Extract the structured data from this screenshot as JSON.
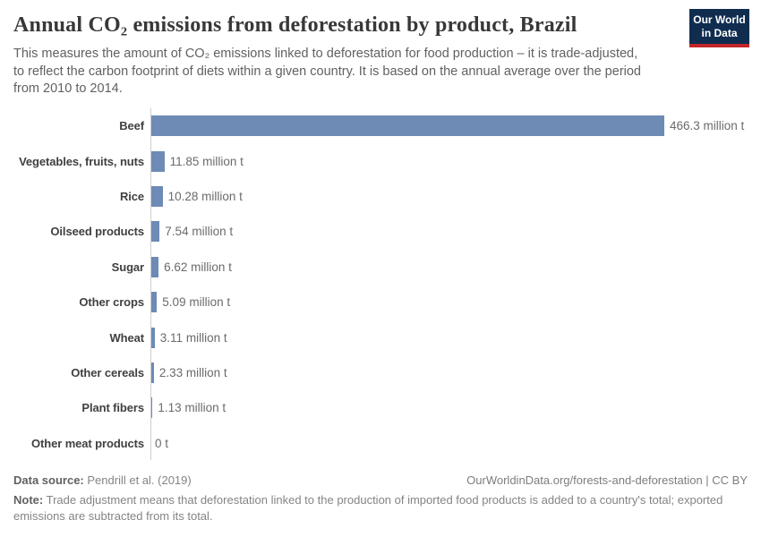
{
  "header": {
    "title": "Annual CO₂ emissions from deforestation by product, Brazil",
    "subtitle": "This measures the amount of CO₂ emissions linked to deforestation for food production – it is trade-adjusted,\nto reflect the carbon footprint of diets within a given country. It is based on the annual average over the period\nfrom 2010 to 2014."
  },
  "logo": {
    "line1": "Our World",
    "line2": "in Data",
    "bg_color": "#102d50",
    "stripe_color": "#c3262a"
  },
  "chart_data": {
    "type": "bar",
    "orientation": "horizontal",
    "title": "Annual CO₂ emissions from deforestation by product, Brazil",
    "categories": [
      "Beef",
      "Vegetables, fruits, nuts",
      "Rice",
      "Oilseed products",
      "Sugar",
      "Other crops",
      "Wheat",
      "Other cereals",
      "Plant fibers",
      "Other meat products"
    ],
    "values": [
      466.3,
      11.85,
      10.28,
      7.54,
      6.62,
      5.09,
      3.11,
      2.33,
      1.13,
      0
    ],
    "value_labels": [
      "466.3 million t",
      "11.85 million t",
      "10.28 million t",
      "7.54 million t",
      "6.62 million t",
      "5.09 million t",
      "3.11 million t",
      "2.33 million t",
      "1.13 million t",
      "0 t"
    ],
    "unit": "million t",
    "xlim": [
      0,
      466.3
    ],
    "bar_color": "#6d8bb5",
    "axis_color": "#cfcfcf",
    "grid": false,
    "legend": false
  },
  "footer": {
    "data_source_label": "Data source:",
    "data_source_value": "Pendrill et al. (2019)",
    "citation": "OurWorldinData.org/forests-and-deforestation | CC BY",
    "note_label": "Note:",
    "note_text": "Trade adjustment means that deforestation linked to the production of imported food products is added to a country's total; exported\nemissions are subtracted from its total."
  }
}
